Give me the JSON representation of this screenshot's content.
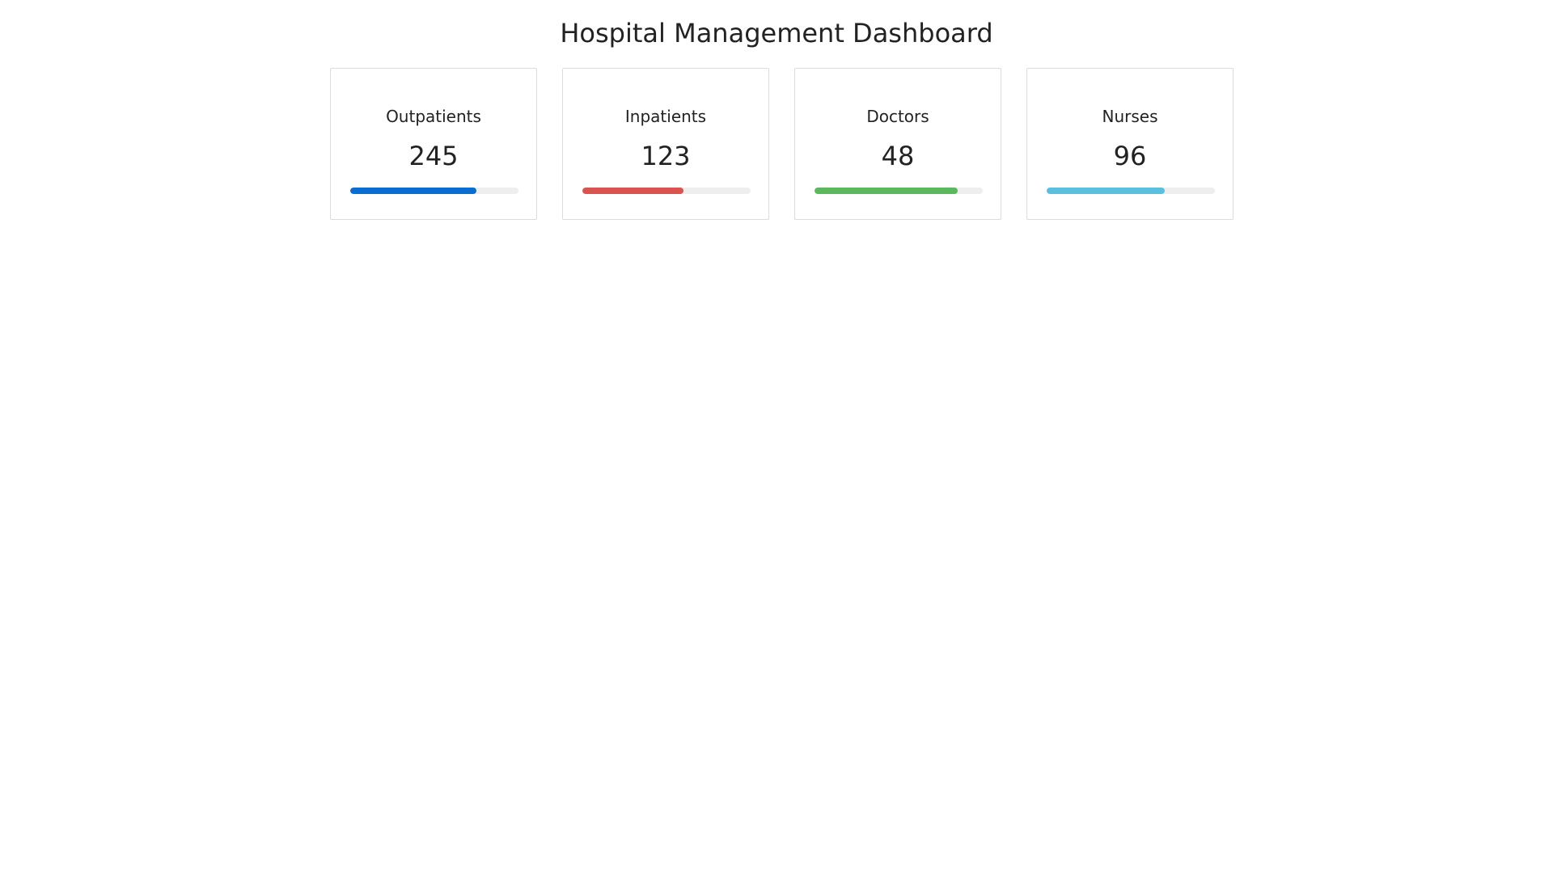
{
  "header": {
    "title": "Hospital Management Dashboard"
  },
  "cards": [
    {
      "label": "Outpatients",
      "value": "245",
      "progress": 0.75,
      "color": "#0a6ed1"
    },
    {
      "label": "Inpatients",
      "value": "123",
      "progress": 0.6,
      "color": "#d9534f"
    },
    {
      "label": "Doctors",
      "value": "48",
      "progress": 0.85,
      "color": "#5cb85c"
    },
    {
      "label": "Nurses",
      "value": "96",
      "progress": 0.7,
      "color": "#5bc0de"
    }
  ]
}
